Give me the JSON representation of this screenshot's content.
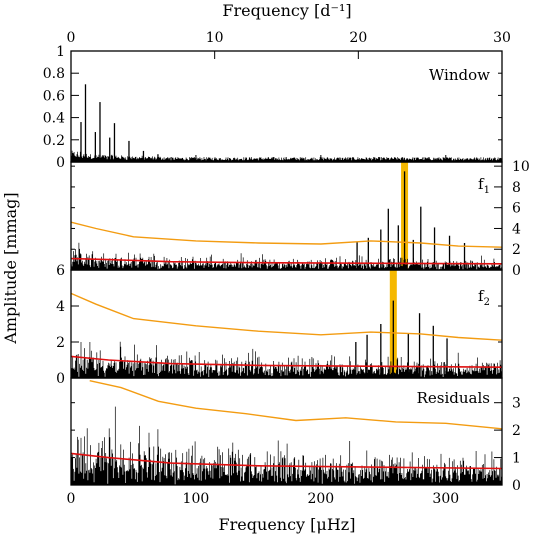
{
  "chart_data": [
    {
      "type": "line",
      "panel": "window",
      "label": "Window",
      "top_axis": {
        "label": "Frequency [d⁻¹]",
        "ticks": [
          0,
          10,
          20,
          30
        ],
        "range": [
          0,
          30
        ]
      },
      "x_range_uHz": [
        0,
        345
      ],
      "left_axis": {
        "ticks": [
          0,
          0.2,
          0.4,
          0.6,
          0.8,
          1
        ],
        "labels": [
          "0",
          "0.2",
          "0.4",
          "0.6",
          "0.8",
          "1"
        ],
        "range": [
          0,
          1.0
        ]
      },
      "peaks": [
        {
          "x": 11.6,
          "y": 0.7
        },
        {
          "x": 8.0,
          "y": 0.36
        },
        {
          "x": 23.2,
          "y": 0.54
        },
        {
          "x": 19.5,
          "y": 0.27
        },
        {
          "x": 34.8,
          "y": 0.35
        },
        {
          "x": 31.0,
          "y": 0.22
        },
        {
          "x": 46.4,
          "y": 0.19
        },
        {
          "x": 58.0,
          "y": 0.1
        },
        {
          "x": 69.6,
          "y": 0.07
        }
      ]
    },
    {
      "type": "line",
      "panel": "f1",
      "label": "f",
      "label_sub": "1",
      "right_axis": {
        "ticks": [
          0,
          2,
          4,
          6,
          8,
          10
        ],
        "labels": [
          "0",
          "2",
          "4",
          "6",
          "8",
          "10"
        ],
        "range": [
          0,
          10.4
        ]
      },
      "highlight": {
        "x": 267.0,
        "color": "#F5B800"
      },
      "peaks": [
        {
          "x": 267.0,
          "y": 9.5
        },
        {
          "x": 254.0,
          "y": 5.9
        },
        {
          "x": 280.0,
          "y": 6.1
        },
        {
          "x": 262.0,
          "y": 4.3
        },
        {
          "x": 248.0,
          "y": 3.9
        },
        {
          "x": 291.0,
          "y": 4.1
        },
        {
          "x": 238.0,
          "y": 3.1
        },
        {
          "x": 229.0,
          "y": 2.7
        },
        {
          "x": 303.0,
          "y": 3.3
        },
        {
          "x": 274.0,
          "y": 2.9
        },
        {
          "x": 315.0,
          "y": 2.6
        }
      ],
      "threshold_orange": [
        [
          0,
          4.6
        ],
        [
          20,
          4.0
        ],
        [
          50,
          3.2
        ],
        [
          100,
          2.8
        ],
        [
          150,
          2.6
        ],
        [
          200,
          2.5
        ],
        [
          240,
          2.8
        ],
        [
          280,
          2.6
        ],
        [
          310,
          2.3
        ],
        [
          345,
          2.2
        ]
      ],
      "noise_red": [
        [
          0,
          1.1
        ],
        [
          30,
          1.0
        ],
        [
          80,
          0.8
        ],
        [
          150,
          0.7
        ],
        [
          250,
          0.65
        ],
        [
          345,
          0.6
        ]
      ]
    },
    {
      "type": "line",
      "panel": "f2",
      "label": "f",
      "label_sub": "2",
      "left_axis": {
        "ticks": [
          0,
          2,
          4,
          6
        ],
        "labels": [
          "0",
          "2",
          "4",
          "6"
        ],
        "range": [
          0,
          6
        ]
      },
      "highlight": {
        "x": 258.0,
        "color": "#F5B800"
      },
      "peaks": [
        {
          "x": 258.0,
          "y": 4.3
        },
        {
          "x": 248.0,
          "y": 3.0
        },
        {
          "x": 279.0,
          "y": 3.6
        },
        {
          "x": 290.0,
          "y": 2.9
        },
        {
          "x": 270.0,
          "y": 2.5
        },
        {
          "x": 237.0,
          "y": 2.4
        },
        {
          "x": 301.0,
          "y": 2.2
        },
        {
          "x": 228.0,
          "y": 2.0
        }
      ],
      "threshold_orange": [
        [
          0,
          4.7
        ],
        [
          20,
          4.1
        ],
        [
          50,
          3.3
        ],
        [
          100,
          2.9
        ],
        [
          150,
          2.6
        ],
        [
          200,
          2.4
        ],
        [
          240,
          2.55
        ],
        [
          280,
          2.45
        ],
        [
          310,
          2.25
        ],
        [
          345,
          2.1
        ]
      ],
      "noise_red": [
        [
          0,
          1.2
        ],
        [
          30,
          1.0
        ],
        [
          80,
          0.8
        ],
        [
          150,
          0.7
        ],
        [
          250,
          0.65
        ],
        [
          345,
          0.6
        ]
      ]
    },
    {
      "type": "line",
      "panel": "residuals",
      "label": "Residuals",
      "right_axis": {
        "ticks": [
          0,
          1,
          2,
          3
        ],
        "labels": [
          "0",
          "1",
          "2",
          "3"
        ],
        "range": [
          0,
          3.9
        ]
      },
      "threshold_orange": [
        [
          15,
          3.8
        ],
        [
          40,
          3.55
        ],
        [
          70,
          3.05
        ],
        [
          100,
          2.8
        ],
        [
          140,
          2.6
        ],
        [
          180,
          2.35
        ],
        [
          220,
          2.45
        ],
        [
          260,
          2.3
        ],
        [
          300,
          2.25
        ],
        [
          345,
          2.05
        ]
      ],
      "noise_red": [
        [
          0,
          1.15
        ],
        [
          30,
          1.0
        ],
        [
          80,
          0.8
        ],
        [
          150,
          0.7
        ],
        [
          250,
          0.65
        ],
        [
          345,
          0.6
        ]
      ]
    }
  ],
  "axes": {
    "bottom_label": "Frequency [μHz]",
    "bottom_ticks": [
      0,
      100,
      200,
      300
    ],
    "y_label": "Amplitude [mmag]"
  },
  "colors": {
    "threshold": "#F39C12",
    "noise": "#E01010",
    "highlight": "#F5B800",
    "spectrum": "#000000"
  }
}
